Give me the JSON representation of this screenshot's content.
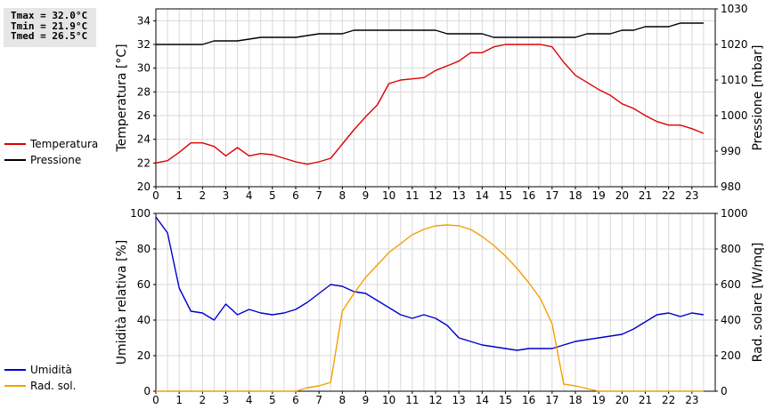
{
  "stats": {
    "tmax": "Tmax = 32.0°C",
    "tmin": "Tmin = 21.9°C",
    "tmed": "Tmed = 26.5°C"
  },
  "colors": {
    "temperature": "#dd0000",
    "pressure": "#000000",
    "humidity": "#0000cc",
    "radiation": "#f2a000",
    "grid": "#d9d9d9"
  },
  "legend_top": [
    {
      "label": "Temperatura",
      "color": "#dd0000"
    },
    {
      "label": "Pressione",
      "color": "#000000"
    }
  ],
  "legend_bottom": [
    {
      "label": "Umidità",
      "color": "#0000cc"
    },
    {
      "label": "Rad. sol.",
      "color": "#f2a000"
    }
  ],
  "chart_data": [
    {
      "type": "line",
      "ylabel": "Temperatura [°C]",
      "y2label": "Pressione [mbar]",
      "xlim": [
        0,
        24
      ],
      "ylim": [
        20,
        35
      ],
      "y2lim": [
        980,
        1030
      ],
      "xticks": [
        0,
        1,
        2,
        3,
        4,
        5,
        6,
        7,
        8,
        9,
        10,
        11,
        12,
        13,
        14,
        15,
        16,
        17,
        18,
        19,
        20,
        21,
        22,
        23
      ],
      "yticks": [
        20,
        22,
        24,
        26,
        28,
        30,
        32,
        34
      ],
      "y2ticks": [
        980,
        990,
        1000,
        1010,
        1020,
        1030
      ],
      "grid": true,
      "series": [
        {
          "name": "Temperatura",
          "axis": "left",
          "color": "#dd0000",
          "x": [
            0,
            0.5,
            1,
            1.5,
            2,
            2.5,
            3,
            3.5,
            4,
            4.5,
            5,
            5.5,
            6,
            6.5,
            7,
            7.5,
            8,
            8.5,
            9,
            9.5,
            10,
            10.5,
            11,
            11.5,
            12,
            12.5,
            13,
            13.5,
            14,
            14.5,
            15,
            15.5,
            16,
            16.5,
            17,
            17.5,
            18,
            18.5,
            19,
            19.5,
            20,
            20.5,
            21,
            21.5,
            22,
            22.5,
            23,
            23.5
          ],
          "y": [
            22.0,
            22.2,
            22.9,
            23.7,
            23.7,
            23.4,
            22.6,
            23.3,
            22.6,
            22.8,
            22.7,
            22.4,
            22.1,
            21.9,
            22.1,
            22.4,
            23.6,
            24.8,
            25.9,
            26.9,
            28.7,
            29.0,
            29.1,
            29.2,
            29.8,
            30.2,
            30.6,
            31.3,
            31.3,
            31.8,
            32.0,
            32.0,
            32.0,
            32.0,
            31.8,
            30.5,
            29.4,
            28.8,
            28.2,
            27.7,
            27.0,
            26.6,
            26.0,
            25.5,
            25.2,
            25.2,
            24.9,
            24.5
          ]
        },
        {
          "name": "Pressione",
          "axis": "right",
          "color": "#000000",
          "x": [
            0,
            2,
            2.5,
            3.5,
            4.5,
            5,
            6,
            7,
            8,
            8.5,
            9,
            10,
            11,
            12,
            12.5,
            13,
            14,
            14.5,
            15,
            16,
            17,
            18,
            18.5,
            19,
            19.5,
            20,
            20.5,
            21,
            22,
            22.5,
            23,
            23.5
          ],
          "y": [
            1020,
            1020,
            1021,
            1021,
            1022,
            1022,
            1022,
            1023,
            1023,
            1024,
            1024,
            1024,
            1024,
            1024,
            1023,
            1023,
            1023,
            1022,
            1022,
            1022,
            1022,
            1022,
            1023,
            1023,
            1023,
            1024,
            1024,
            1025,
            1025,
            1026,
            1026,
            1026
          ]
        }
      ]
    },
    {
      "type": "line",
      "ylabel": "Umidità relativa [%]",
      "y2label": "Rad. solare [W/mq]",
      "xlim": [
        0,
        24
      ],
      "ylim": [
        0,
        100
      ],
      "y2lim": [
        0,
        1000
      ],
      "xticks": [
        0,
        1,
        2,
        3,
        4,
        5,
        6,
        7,
        8,
        9,
        10,
        11,
        12,
        13,
        14,
        15,
        16,
        17,
        18,
        19,
        20,
        21,
        22,
        23
      ],
      "yticks": [
        0,
        20,
        40,
        60,
        80,
        100
      ],
      "y2ticks": [
        0,
        200,
        400,
        600,
        800,
        1000
      ],
      "grid": true,
      "series": [
        {
          "name": "Umidità",
          "axis": "left",
          "color": "#0000cc",
          "x": [
            0,
            0.5,
            1,
            1.5,
            2,
            2.5,
            3,
            3.5,
            4,
            4.5,
            5,
            5.5,
            6,
            6.5,
            7,
            7.5,
            8,
            8.5,
            9,
            9.5,
            10,
            10.5,
            11,
            11.5,
            12,
            12.5,
            13,
            13.5,
            14,
            14.5,
            15,
            15.5,
            16,
            16.5,
            17,
            17.5,
            18,
            18.5,
            19,
            19.5,
            20,
            20.5,
            21,
            21.5,
            22,
            22.5,
            23,
            23.5
          ],
          "y": [
            98,
            89,
            58,
            45,
            44,
            40,
            49,
            43,
            46,
            44,
            43,
            44,
            46,
            50,
            55,
            60,
            59,
            56,
            55,
            51,
            47,
            43,
            41,
            43,
            41,
            37,
            30,
            28,
            26,
            25,
            24,
            23,
            24,
            24,
            24,
            26,
            28,
            29,
            30,
            31,
            32,
            35,
            39,
            43,
            44,
            42,
            44,
            43
          ]
        },
        {
          "name": "Rad. sol.",
          "axis": "right",
          "color": "#f2a000",
          "x": [
            0,
            6,
            6.5,
            7,
            7.5,
            8,
            8.5,
            9,
            9.5,
            10,
            10.5,
            11,
            11.5,
            12,
            12.5,
            13,
            13.5,
            14,
            14.5,
            15,
            15.5,
            16,
            16.5,
            17,
            17.5,
            18,
            18.5,
            19,
            19.5,
            20,
            21,
            22,
            23,
            23.5
          ],
          "y": [
            0,
            0,
            20,
            30,
            50,
            450,
            550,
            640,
            710,
            780,
            830,
            880,
            910,
            930,
            935,
            930,
            910,
            870,
            820,
            760,
            690,
            610,
            520,
            380,
            40,
            30,
            15,
            0,
            0,
            0,
            0,
            0,
            0,
            0
          ]
        }
      ]
    }
  ]
}
